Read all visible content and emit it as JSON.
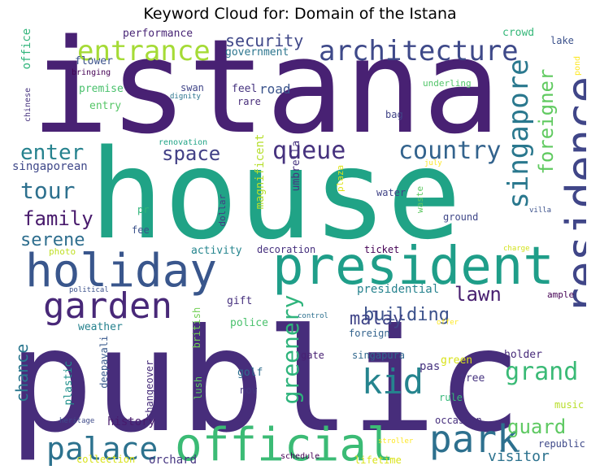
{
  "chart_data": {
    "type": "wordcloud",
    "title": "Keyword Cloud for: Domain of the Istana",
    "palette": "viridis",
    "words": [
      {
        "text": "istana",
        "weight": 100,
        "color": "#482173",
        "rotate": false
      },
      {
        "text": "house",
        "weight": 78,
        "color": "#20a386",
        "rotate": false
      },
      {
        "text": "public",
        "weight": 85,
        "color": "#472d7b",
        "rotate": false
      },
      {
        "text": "president",
        "weight": 30,
        "color": "#1f9e89",
        "rotate": false
      },
      {
        "text": "holiday",
        "weight": 22,
        "color": "#39568c",
        "rotate": false
      },
      {
        "text": "residence",
        "weight": 24,
        "color": "#404688",
        "rotate": true
      },
      {
        "text": "official",
        "weight": 25,
        "color": "#3bbb75",
        "rotate": false
      },
      {
        "text": "park",
        "weight": 22,
        "color": "#2d708e",
        "rotate": false
      },
      {
        "text": "garden",
        "weight": 20,
        "color": "#482878",
        "rotate": false
      },
      {
        "text": "architecture",
        "weight": 16,
        "color": "#3e4989",
        "rotate": false
      },
      {
        "text": "entrance",
        "weight": 15,
        "color": "#a5db36",
        "rotate": false
      },
      {
        "text": "singapore",
        "weight": 16,
        "color": "#2a788e",
        "rotate": true
      },
      {
        "text": "palace",
        "weight": 17,
        "color": "#2c728e",
        "rotate": false
      },
      {
        "text": "kid",
        "weight": 18,
        "color": "#25848e",
        "rotate": false
      },
      {
        "text": "queue",
        "weight": 14,
        "color": "#46327e",
        "rotate": false
      },
      {
        "text": "country",
        "weight": 13,
        "color": "#33638d",
        "rotate": false
      },
      {
        "text": "grand",
        "weight": 13,
        "color": "#3aba76",
        "rotate": false
      },
      {
        "text": "greenery",
        "weight": 12,
        "color": "#2fb47c",
        "rotate": true
      },
      {
        "text": "foreigner",
        "weight": 10,
        "color": "#60ca60",
        "rotate": true
      },
      {
        "text": "enter",
        "weight": 11,
        "color": "#26828e",
        "rotate": false
      },
      {
        "text": "tour",
        "weight": 12,
        "color": "#2d708e",
        "rotate": false
      },
      {
        "text": "space",
        "weight": 10,
        "color": "#424086",
        "rotate": false
      },
      {
        "text": "family",
        "weight": 10,
        "color": "#481a6c",
        "rotate": false
      },
      {
        "text": "serene",
        "weight": 9,
        "color": "#2e6e8e",
        "rotate": false
      },
      {
        "text": "building",
        "weight": 9,
        "color": "#3b518b",
        "rotate": false
      },
      {
        "text": "lawn",
        "weight": 10,
        "color": "#481f70",
        "rotate": false
      },
      {
        "text": "security",
        "weight": 9,
        "color": "#3f4788",
        "rotate": false
      },
      {
        "text": "malay",
        "weight": 9,
        "color": "#404588",
        "rotate": false
      },
      {
        "text": "guard",
        "weight": 10,
        "color": "#5ec962",
        "rotate": false
      },
      {
        "text": "visitor",
        "weight": 8,
        "color": "#2c728e",
        "rotate": false
      },
      {
        "text": "chance",
        "weight": 8,
        "color": "#2a778e",
        "rotate": true
      },
      {
        "text": "presidential",
        "weight": 6,
        "color": "#26828e",
        "rotate": false
      },
      {
        "text": "history",
        "weight": 6,
        "color": "#481b6d",
        "rotate": false
      },
      {
        "text": "pas",
        "weight": 6,
        "color": "#46337f",
        "rotate": false
      },
      {
        "text": "singaporean",
        "weight": 5,
        "color": "#3f4889",
        "rotate": false
      },
      {
        "text": "orchard",
        "weight": 5,
        "color": "#453581",
        "rotate": false
      },
      {
        "text": "crowd",
        "weight": 5,
        "color": "#35b779",
        "rotate": false
      },
      {
        "text": "lake",
        "weight": 4,
        "color": "#3b518b",
        "rotate": false
      },
      {
        "text": "performance",
        "weight": 5,
        "color": "#482576",
        "rotate": false
      },
      {
        "text": "government",
        "weight": 4,
        "color": "#2b758e",
        "rotate": false
      },
      {
        "text": "office",
        "weight": 4,
        "color": "#31b57b",
        "rotate": true
      },
      {
        "text": "flower",
        "weight": 4,
        "color": "#3b528b",
        "rotate": false
      },
      {
        "text": "premise",
        "weight": 4,
        "color": "#4ac16d",
        "rotate": false
      },
      {
        "text": "entry",
        "weight": 4,
        "color": "#56c667",
        "rotate": false
      },
      {
        "text": "swan",
        "weight": 4,
        "color": "#404688",
        "rotate": false
      },
      {
        "text": "feel",
        "weight": 4,
        "color": "#46337f",
        "rotate": false
      },
      {
        "text": "road",
        "weight": 5,
        "color": "#3a548c",
        "rotate": false
      },
      {
        "text": "rare",
        "weight": 4,
        "color": "#472c7a",
        "rotate": false
      },
      {
        "text": "bag",
        "weight": 4,
        "color": "#414487",
        "rotate": false
      },
      {
        "text": "underling",
        "weight": 3,
        "color": "#52c569",
        "rotate": false
      },
      {
        "text": "bringing",
        "weight": 3,
        "color": "#440154",
        "rotate": false
      },
      {
        "text": "dignity",
        "weight": 3,
        "color": "#2b758e",
        "rotate": false
      },
      {
        "text": "chinese",
        "weight": 3,
        "color": "#46327e",
        "rotate": true
      },
      {
        "text": "pond",
        "weight": 3,
        "color": "#fde725",
        "rotate": true
      },
      {
        "text": "renovation",
        "weight": 3,
        "color": "#20a386",
        "rotate": false
      },
      {
        "text": "july",
        "weight": 2,
        "color": "#fde725",
        "rotate": false
      },
      {
        "text": "magnificent",
        "weight": 5,
        "color": "#b5de2b",
        "rotate": true
      },
      {
        "text": "umbrella",
        "weight": 4,
        "color": "#46337f",
        "rotate": true
      },
      {
        "text": "plaza",
        "weight": 3,
        "color": "#dde318",
        "rotate": true
      },
      {
        "text": "water",
        "weight": 4,
        "color": "#414487",
        "rotate": false
      },
      {
        "text": "waste",
        "weight": 3,
        "color": "#5ec962",
        "rotate": true
      },
      {
        "text": "ground",
        "weight": 4,
        "color": "#3f4788",
        "rotate": false
      },
      {
        "text": "villa",
        "weight": 2,
        "color": "#3b518b",
        "rotate": false
      },
      {
        "text": "pr",
        "weight": 4,
        "color": "#31b57b",
        "rotate": false
      },
      {
        "text": "dollar",
        "weight": 3,
        "color": "#453882",
        "rotate": true
      },
      {
        "text": "fee",
        "weight": 4,
        "color": "#3b528b",
        "rotate": false
      },
      {
        "text": "photo",
        "weight": 4,
        "color": "#c0df25",
        "rotate": false
      },
      {
        "text": "activity",
        "weight": 5,
        "color": "#25858e",
        "rotate": false
      },
      {
        "text": "decoration",
        "weight": 4,
        "color": "#46307e",
        "rotate": false
      },
      {
        "text": "ticket",
        "weight": 4,
        "color": "#440154",
        "rotate": false
      },
      {
        "text": "charge",
        "weight": 2,
        "color": "#d2e21b",
        "rotate": false
      },
      {
        "text": "political",
        "weight": 2,
        "color": "#3b518b",
        "rotate": false
      },
      {
        "text": "gift",
        "weight": 5,
        "color": "#46307e",
        "rotate": false
      },
      {
        "text": "british",
        "weight": 4,
        "color": "#73d056",
        "rotate": true
      },
      {
        "text": "ample",
        "weight": 3,
        "color": "#440154",
        "rotate": false
      },
      {
        "text": "weather",
        "weight": 4,
        "color": "#26828e",
        "rotate": false
      },
      {
        "text": "police",
        "weight": 4,
        "color": "#4ac16d",
        "rotate": false
      },
      {
        "text": "control",
        "weight": 2,
        "color": "#2d708e",
        "rotate": false
      },
      {
        "text": "foreign",
        "weight": 4,
        "color": "#33638d",
        "rotate": false
      },
      {
        "text": "offer",
        "weight": 2,
        "color": "#fde725",
        "rotate": false
      },
      {
        "text": "deepavali",
        "weight": 4,
        "color": "#38598c",
        "rotate": true
      },
      {
        "text": "plastic",
        "weight": 4,
        "color": "#21918c",
        "rotate": true
      },
      {
        "text": "changeover",
        "weight": 4,
        "color": "#472d7b",
        "rotate": true
      },
      {
        "text": "gate",
        "weight": 4,
        "color": "#482173",
        "rotate": false
      },
      {
        "text": "singapura",
        "weight": 4,
        "color": "#31688e",
        "rotate": false
      },
      {
        "text": "green",
        "weight": 4,
        "color": "#d8e219",
        "rotate": false
      },
      {
        "text": "holder",
        "weight": 4,
        "color": "#472a7a",
        "rotate": false
      },
      {
        "text": "tree",
        "weight": 4,
        "color": "#46337f",
        "rotate": false
      },
      {
        "text": "lush",
        "weight": 4,
        "color": "#5ec962",
        "rotate": true
      },
      {
        "text": "golf",
        "weight": 4,
        "color": "#2e6e8e",
        "rotate": false
      },
      {
        "text": "nov",
        "weight": 4,
        "color": "#453781",
        "rotate": false
      },
      {
        "text": "rule",
        "weight": 4,
        "color": "#35b779",
        "rotate": false
      },
      {
        "text": "music",
        "weight": 4,
        "color": "#b8de29",
        "rotate": false
      },
      {
        "text": "heritage",
        "weight": 3,
        "color": "#3e4a89",
        "rotate": false
      },
      {
        "text": "occasion",
        "weight": 4,
        "color": "#472f7d",
        "rotate": false
      },
      {
        "text": "republic",
        "weight": 4,
        "color": "#3e4989",
        "rotate": false
      },
      {
        "text": "stroller",
        "weight": 2,
        "color": "#fde725",
        "rotate": false
      },
      {
        "text": "schedule",
        "weight": 3,
        "color": "#440154",
        "rotate": false
      },
      {
        "text": "lifetime",
        "weight": 4,
        "color": "#dae319",
        "rotate": false
      },
      {
        "text": "collection",
        "weight": 4,
        "color": "#d8e219",
        "rotate": false
      }
    ]
  }
}
